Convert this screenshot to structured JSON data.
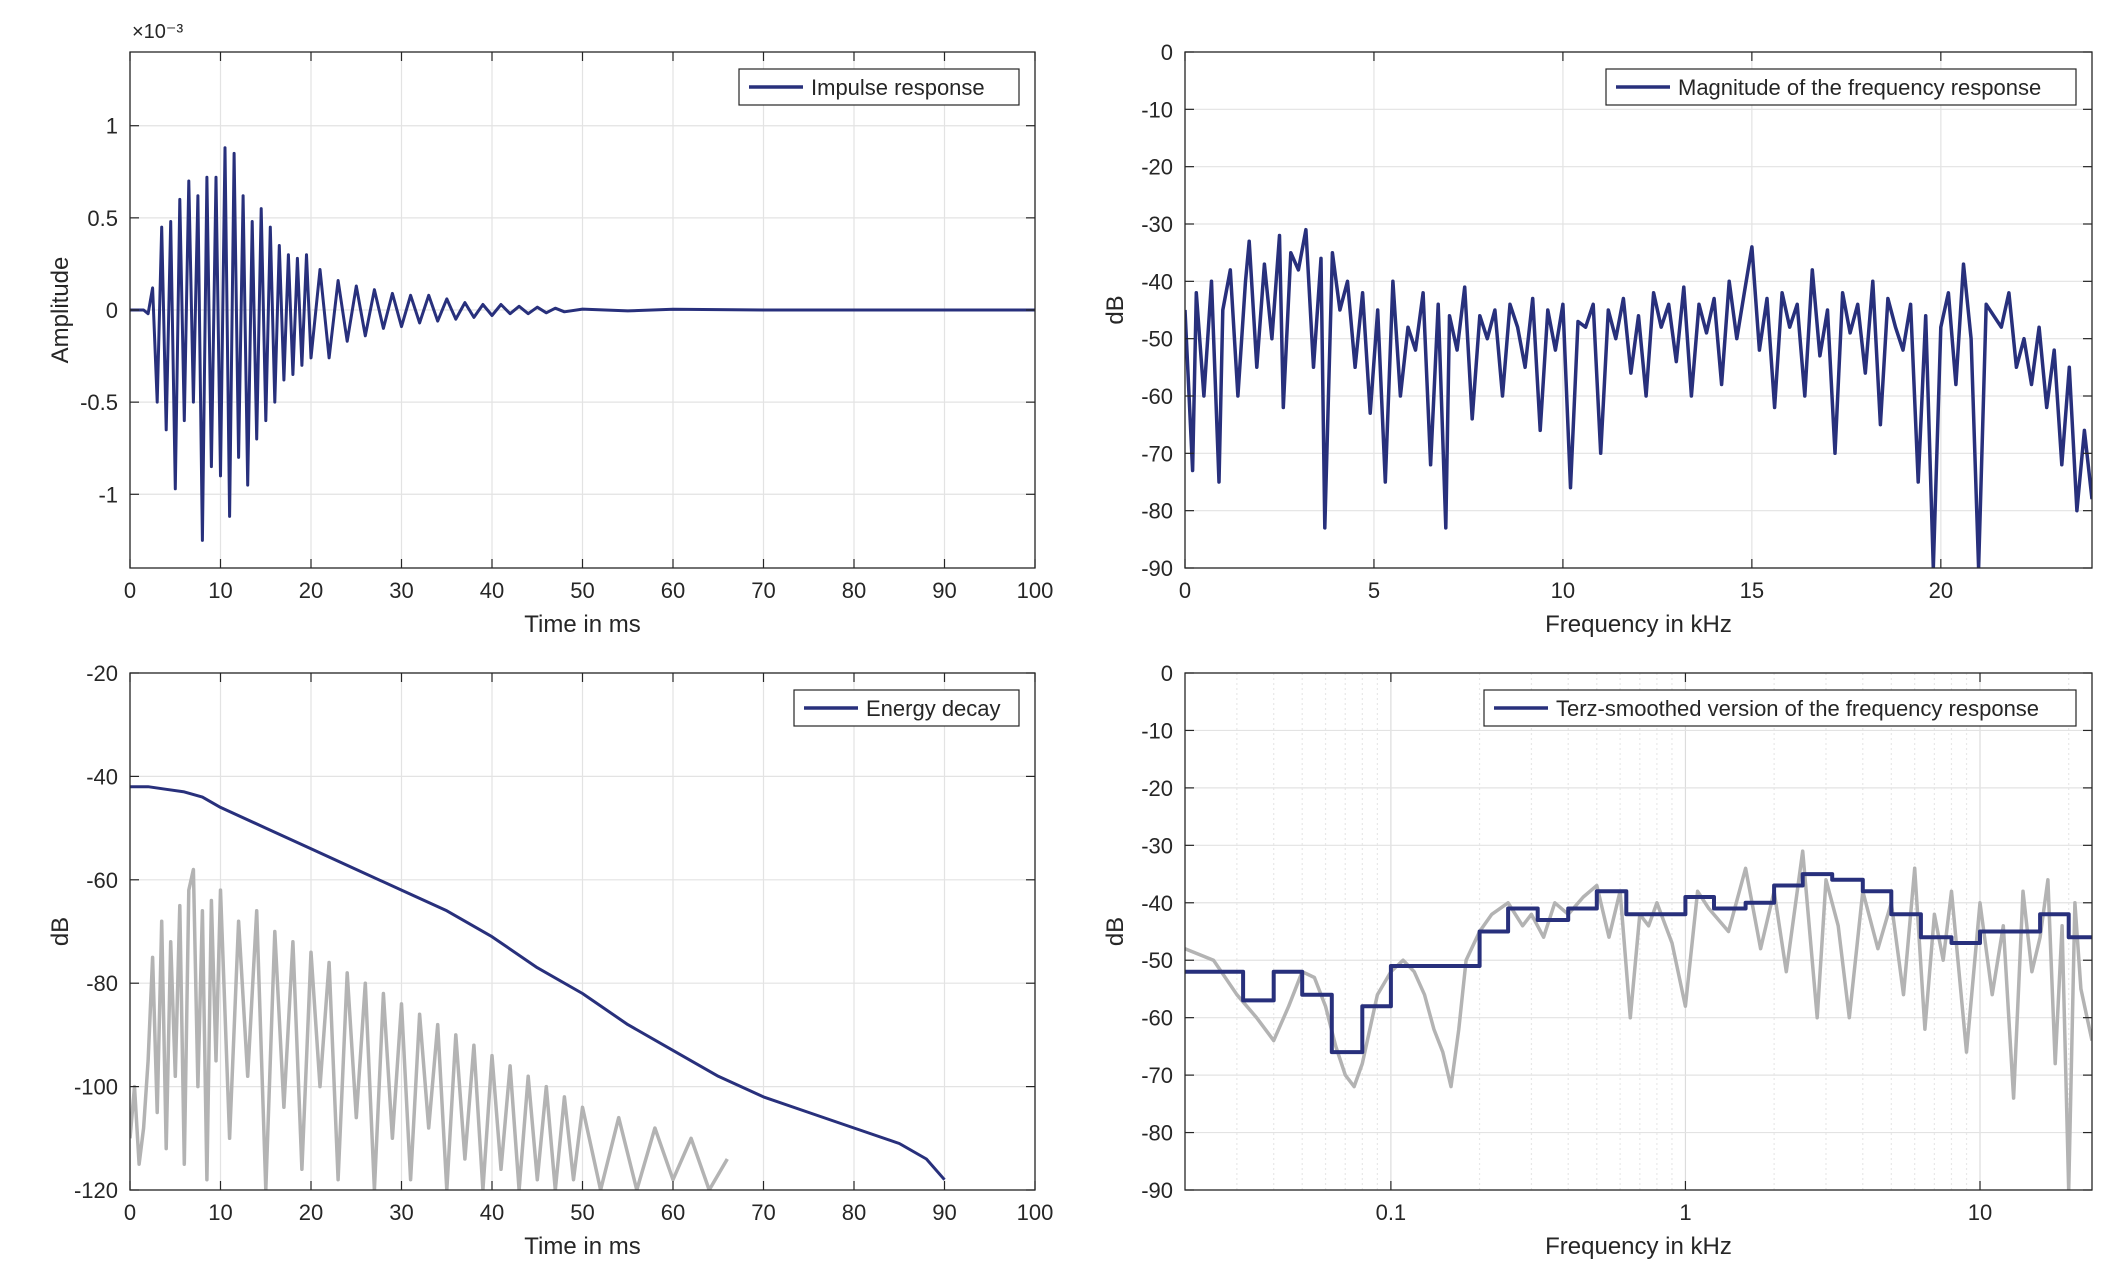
{
  "colors": {
    "series": "#28307c",
    "gray": "#b3b3b3",
    "grid": "#e6e6e6",
    "axis": "#262626"
  },
  "chart_data": [
    {
      "id": "ir",
      "type": "line",
      "title": "",
      "xlabel": "Time in ms",
      "ylabel": "Amplitude",
      "exponent_label": "×10⁻³",
      "xlim": [
        0,
        100
      ],
      "ylim": [
        -1.4,
        1.4
      ],
      "xscale": "linear",
      "grid": true,
      "legend_position": "top-right",
      "xticks": [
        0,
        10,
        20,
        30,
        40,
        50,
        60,
        70,
        80,
        90,
        100
      ],
      "xticklabels": [
        "0",
        "10",
        "20",
        "30",
        "40",
        "50",
        "60",
        "70",
        "80",
        "90",
        "100"
      ],
      "yticks": [
        1,
        0.5,
        0,
        -0.5,
        -1
      ],
      "yticklabels": [
        "1",
        "0.5",
        "0",
        "-0.5",
        "-1"
      ],
      "series": [
        {
          "name": "Impulse response",
          "color": "#28307c",
          "legend": true,
          "x": [
            0,
            1.5,
            2.0,
            2.5,
            3.0,
            3.5,
            4.0,
            4.5,
            5.0,
            5.5,
            6.0,
            6.5,
            7.0,
            7.5,
            8.0,
            8.5,
            9.0,
            9.5,
            10.0,
            10.5,
            11.0,
            11.5,
            12.0,
            12.5,
            13.0,
            13.5,
            14.0,
            14.5,
            15.0,
            15.5,
            16.0,
            16.5,
            17.0,
            17.5,
            18.0,
            18.5,
            19.0,
            19.5,
            20.0,
            21.0,
            22.0,
            23.0,
            24.0,
            25.0,
            26.0,
            27.0,
            28.0,
            29.0,
            30.0,
            31.0,
            32.0,
            33.0,
            34.0,
            35.0,
            36.0,
            37.0,
            38.0,
            39.0,
            40.0,
            41.0,
            42.0,
            43.0,
            44.0,
            45.0,
            46.0,
            47.0,
            48.0,
            50.0,
            55.0,
            60.0,
            70.0,
            80.0,
            90.0,
            100.0
          ],
          "y": [
            0,
            0.0,
            -0.02,
            0.12,
            -0.5,
            0.45,
            -0.65,
            0.48,
            -0.97,
            0.6,
            -0.6,
            0.7,
            -0.5,
            0.62,
            -1.25,
            0.72,
            -0.85,
            0.72,
            -0.9,
            0.88,
            -1.12,
            0.85,
            -0.8,
            0.62,
            -0.95,
            0.48,
            -0.7,
            0.55,
            -0.6,
            0.45,
            -0.5,
            0.35,
            -0.38,
            0.3,
            -0.35,
            0.28,
            -0.3,
            0.3,
            -0.26,
            0.22,
            -0.26,
            0.16,
            -0.17,
            0.13,
            -0.14,
            0.11,
            -0.1,
            0.09,
            -0.09,
            0.08,
            -0.07,
            0.08,
            -0.06,
            0.06,
            -0.05,
            0.04,
            -0.04,
            0.03,
            -0.03,
            0.03,
            -0.02,
            0.02,
            -0.02,
            0.015,
            -0.015,
            0.01,
            -0.01,
            0.005,
            -0.005,
            0.004,
            0.0,
            0.0,
            0.0,
            0.0
          ]
        }
      ]
    },
    {
      "id": "fr",
      "type": "line",
      "title": "",
      "xlabel": "Frequency in kHz",
      "ylabel": "dB",
      "xlim": [
        0,
        24
      ],
      "ylim": [
        -90,
        0
      ],
      "xscale": "linear",
      "grid": true,
      "legend_position": "top-right",
      "xticks": [
        0,
        5,
        10,
        15,
        20
      ],
      "xticklabels": [
        "0",
        "5",
        "10",
        "15",
        "20"
      ],
      "yticks": [
        0,
        -10,
        -20,
        -30,
        -40,
        -50,
        -60,
        -70,
        -80,
        -90
      ],
      "yticklabels": [
        "0",
        "-10",
        "-20",
        "-30",
        "-40",
        "-50",
        "-60",
        "-70",
        "-80",
        "-90"
      ],
      "series": [
        {
          "name": "Magnitude of the frequency response",
          "color": "#28307c",
          "legend": true,
          "x": [
            0,
            0.2,
            0.3,
            0.5,
            0.7,
            0.9,
            1.0,
            1.2,
            1.4,
            1.6,
            1.7,
            1.9,
            2.1,
            2.3,
            2.5,
            2.6,
            2.8,
            3.0,
            3.2,
            3.4,
            3.6,
            3.7,
            3.9,
            4.1,
            4.3,
            4.5,
            4.7,
            4.9,
            5.1,
            5.3,
            5.5,
            5.7,
            5.9,
            6.1,
            6.3,
            6.5,
            6.7,
            6.9,
            7.0,
            7.2,
            7.4,
            7.6,
            7.8,
            8.0,
            8.2,
            8.4,
            8.6,
            8.8,
            9.0,
            9.2,
            9.4,
            9.6,
            9.8,
            10.0,
            10.2,
            10.4,
            10.6,
            10.8,
            11.0,
            11.2,
            11.4,
            11.6,
            11.8,
            12.0,
            12.2,
            12.4,
            12.6,
            12.8,
            13.0,
            13.2,
            13.4,
            13.6,
            13.8,
            14.0,
            14.2,
            14.4,
            14.6,
            14.8,
            15.0,
            15.2,
            15.4,
            15.6,
            15.8,
            16.0,
            16.2,
            16.4,
            16.6,
            16.8,
            17.0,
            17.2,
            17.4,
            17.6,
            17.8,
            18.0,
            18.2,
            18.4,
            18.6,
            18.8,
            19.0,
            19.2,
            19.4,
            19.6,
            19.8,
            20.0,
            20.2,
            20.4,
            20.6,
            20.8,
            21.0,
            21.2,
            21.4,
            21.6,
            21.8,
            22.0,
            22.2,
            22.4,
            22.6,
            22.8,
            23.0,
            23.2,
            23.4,
            23.6,
            23.8,
            24.0
          ],
          "y": [
            -45,
            -73,
            -42,
            -60,
            -40,
            -75,
            -45,
            -38,
            -60,
            -40,
            -33,
            -55,
            -37,
            -50,
            -32,
            -62,
            -35,
            -38,
            -31,
            -55,
            -36,
            -83,
            -35,
            -45,
            -40,
            -55,
            -42,
            -63,
            -45,
            -75,
            -40,
            -60,
            -48,
            -52,
            -42,
            -72,
            -44,
            -83,
            -46,
            -52,
            -41,
            -64,
            -46,
            -50,
            -45,
            -60,
            -44,
            -48,
            -55,
            -43,
            -66,
            -45,
            -52,
            -44,
            -76,
            -47,
            -48,
            -44,
            -70,
            -45,
            -50,
            -43,
            -56,
            -46,
            -60,
            -42,
            -48,
            -44,
            -54,
            -41,
            -60,
            -44,
            -49,
            -43,
            -58,
            -40,
            -50,
            -42,
            -34,
            -52,
            -43,
            -62,
            -42,
            -48,
            -44,
            -60,
            -38,
            -53,
            -45,
            -70,
            -42,
            -49,
            -44,
            -56,
            -40,
            -65,
            -43,
            -48,
            -52,
            -44,
            -75,
            -46,
            -90,
            -48,
            -42,
            -58,
            -37,
            -50,
            -90,
            -44,
            -46,
            -48,
            -42,
            -55,
            -50,
            -58,
            -48,
            -62,
            -52,
            -72,
            -55,
            -80,
            -66,
            -78
          ]
        }
      ]
    },
    {
      "id": "ed",
      "type": "line",
      "title": "",
      "xlabel": "Time in ms",
      "ylabel": "dB",
      "xlim": [
        0,
        100
      ],
      "ylim": [
        -120,
        -20
      ],
      "xscale": "linear",
      "grid": true,
      "legend_position": "top-right",
      "xticks": [
        0,
        10,
        20,
        30,
        40,
        50,
        60,
        70,
        80,
        90,
        100
      ],
      "xticklabels": [
        "0",
        "10",
        "20",
        "30",
        "40",
        "50",
        "60",
        "70",
        "80",
        "90",
        "100"
      ],
      "yticks": [
        -20,
        -40,
        -60,
        -80,
        -100,
        -120
      ],
      "yticklabels": [
        "-20",
        "-40",
        "-60",
        "-80",
        "-100",
        "-120"
      ],
      "series": [
        {
          "name": "",
          "color": "#b3b3b3",
          "legend": false,
          "x": [
            0,
            0.5,
            1.0,
            1.5,
            2.0,
            2.5,
            3.0,
            3.5,
            4.0,
            4.5,
            5.0,
            5.5,
            6.0,
            6.5,
            7.0,
            7.5,
            8.0,
            8.5,
            9.0,
            9.5,
            10.0,
            11.0,
            12.0,
            13.0,
            14.0,
            15.0,
            16.0,
            17.0,
            18.0,
            19.0,
            20.0,
            21.0,
            22.0,
            23.0,
            24.0,
            25.0,
            26.0,
            27.0,
            28.0,
            29.0,
            30.0,
            31.0,
            32.0,
            33.0,
            34.0,
            35.0,
            36.0,
            37.0,
            38.0,
            39.0,
            40.0,
            41.0,
            42.0,
            43.0,
            44.0,
            45.0,
            46.0,
            47.0,
            48.0,
            49.0,
            50.0,
            52.0,
            54.0,
            56.0,
            58.0,
            60.0,
            62.0,
            64.0,
            66.0
          ],
          "y": [
            -110,
            -100,
            -115,
            -108,
            -95,
            -75,
            -105,
            -68,
            -112,
            -72,
            -98,
            -65,
            -115,
            -62,
            -58,
            -100,
            -66,
            -118,
            -64,
            -95,
            -62,
            -110,
            -68,
            -98,
            -66,
            -120,
            -70,
            -104,
            -72,
            -116,
            -74,
            -100,
            -76,
            -118,
            -78,
            -106,
            -80,
            -120,
            -82,
            -110,
            -84,
            -118,
            -86,
            -108,
            -88,
            -120,
            -90,
            -114,
            -92,
            -120,
            -94,
            -116,
            -96,
            -120,
            -98,
            -118,
            -100,
            -120,
            -102,
            -118,
            -104,
            -120,
            -106,
            -120,
            -108,
            -118,
            -110,
            -120,
            -114
          ]
        },
        {
          "name": "Energy decay",
          "color": "#28307c",
          "legend": true,
          "x": [
            0,
            2,
            4,
            6,
            8,
            10,
            15,
            20,
            25,
            30,
            35,
            40,
            45,
            50,
            55,
            60,
            65,
            70,
            75,
            80,
            85,
            88,
            90
          ],
          "y": [
            -42,
            -42,
            -42.5,
            -43,
            -44,
            -46,
            -50,
            -54,
            -58,
            -62,
            -66,
            -71,
            -77,
            -82,
            -88,
            -93,
            -98,
            -102,
            -105,
            -108,
            -111,
            -114,
            -118
          ]
        }
      ]
    },
    {
      "id": "terz",
      "type": "line",
      "title": "",
      "xlabel": "Frequency in kHz",
      "ylabel": "dB",
      "xlim": [
        0.02,
        24
      ],
      "ylim": [
        -90,
        0
      ],
      "xscale": "log",
      "grid": true,
      "legend_position": "top-right",
      "xticks": [
        0.1,
        1,
        10
      ],
      "xticklabels": [
        "0.1",
        "1",
        "10"
      ],
      "yticks": [
        0,
        -10,
        -20,
        -30,
        -40,
        -50,
        -60,
        -70,
        -80,
        -90
      ],
      "yticklabels": [
        "0",
        "-10",
        "-20",
        "-30",
        "-40",
        "-50",
        "-60",
        "-70",
        "-80",
        "-90"
      ],
      "series": [
        {
          "name": "",
          "color": "#b3b3b3",
          "legend": false,
          "x": [
            0.02,
            0.025,
            0.03,
            0.035,
            0.04,
            0.045,
            0.05,
            0.055,
            0.06,
            0.065,
            0.07,
            0.075,
            0.08,
            0.09,
            0.1,
            0.11,
            0.12,
            0.13,
            0.14,
            0.15,
            0.16,
            0.17,
            0.18,
            0.2,
            0.22,
            0.25,
            0.28,
            0.3,
            0.33,
            0.36,
            0.4,
            0.45,
            0.5,
            0.55,
            0.6,
            0.65,
            0.7,
            0.75,
            0.8,
            0.9,
            1.0,
            1.1,
            1.2,
            1.4,
            1.6,
            1.8,
            2.0,
            2.2,
            2.5,
            2.8,
            3.0,
            3.3,
            3.6,
            4.0,
            4.5,
            5.0,
            5.5,
            6.0,
            6.5,
            7.0,
            7.5,
            8.0,
            9.0,
            10.0,
            11.0,
            12.0,
            13.0,
            14.0,
            15.0,
            16.0,
            17.0,
            18.0,
            19.0,
            20.0,
            21.0,
            22.0,
            24.0
          ],
          "y": [
            -48,
            -50,
            -56,
            -60,
            -64,
            -58,
            -52,
            -53,
            -58,
            -65,
            -70,
            -72,
            -68,
            -56,
            -52,
            -50,
            -52,
            -56,
            -62,
            -66,
            -72,
            -62,
            -50,
            -45,
            -42,
            -40,
            -44,
            -42,
            -46,
            -40,
            -42,
            -39,
            -37,
            -46,
            -38,
            -60,
            -42,
            -44,
            -40,
            -47,
            -58,
            -38,
            -41,
            -45,
            -34,
            -48,
            -38,
            -52,
            -31,
            -60,
            -36,
            -44,
            -60,
            -38,
            -48,
            -40,
            -56,
            -34,
            -62,
            -42,
            -50,
            -38,
            -66,
            -40,
            -56,
            -44,
            -74,
            -38,
            -52,
            -46,
            -36,
            -68,
            -44,
            -90,
            -40,
            -55,
            -64
          ]
        },
        {
          "name": "Terz-smoothed version of the frequency response",
          "color": "#28307c",
          "legend": true,
          "x": [
            0.02,
            0.0315,
            0.0315,
            0.04,
            0.04,
            0.05,
            0.05,
            0.063,
            0.063,
            0.08,
            0.08,
            0.1,
            0.1,
            0.125,
            0.125,
            0.2,
            0.2,
            0.25,
            0.25,
            0.315,
            0.315,
            0.4,
            0.4,
            0.5,
            0.5,
            0.63,
            0.63,
            1.0,
            1.0,
            1.25,
            1.25,
            1.6,
            1.6,
            2.0,
            2.0,
            2.5,
            2.5,
            3.15,
            3.15,
            4.0,
            4.0,
            5.0,
            5.0,
            6.3,
            6.3,
            8.0,
            8.0,
            10.0,
            10.0,
            12.5,
            12.5,
            16.0,
            16.0,
            20.0,
            20.0,
            24.0
          ],
          "y": [
            -52,
            -52,
            -57,
            -57,
            -52,
            -52,
            -56,
            -56,
            -66,
            -66,
            -58,
            -58,
            -51,
            -51,
            -51,
            -51,
            -45,
            -45,
            -41,
            -41,
            -43,
            -43,
            -41,
            -41,
            -38,
            -38,
            -42,
            -42,
            -39,
            -39,
            -41,
            -41,
            -40,
            -40,
            -37,
            -37,
            -35,
            -35,
            -36,
            -36,
            -38,
            -38,
            -42,
            -42,
            -46,
            -46,
            -47,
            -47,
            -45,
            -45,
            -45,
            -45,
            -42,
            -42,
            -46,
            -46
          ]
        }
      ]
    }
  ]
}
